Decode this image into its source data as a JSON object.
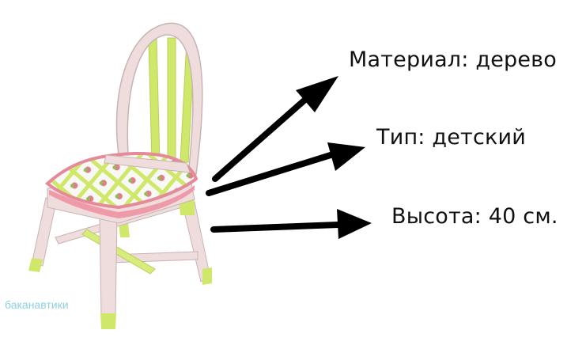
{
  "labels": {
    "material": "Материал: дерево",
    "type": "Тип: детский",
    "height": "Высота: 40 см."
  },
  "watermark": {
    "text": "баканавтики"
  },
  "colors": {
    "arrow": "#000000",
    "chair_pink": "#f0dede",
    "chair_green": "#cfe86a",
    "rose": "#e07c8c",
    "watermark": "#8fd0e0"
  }
}
